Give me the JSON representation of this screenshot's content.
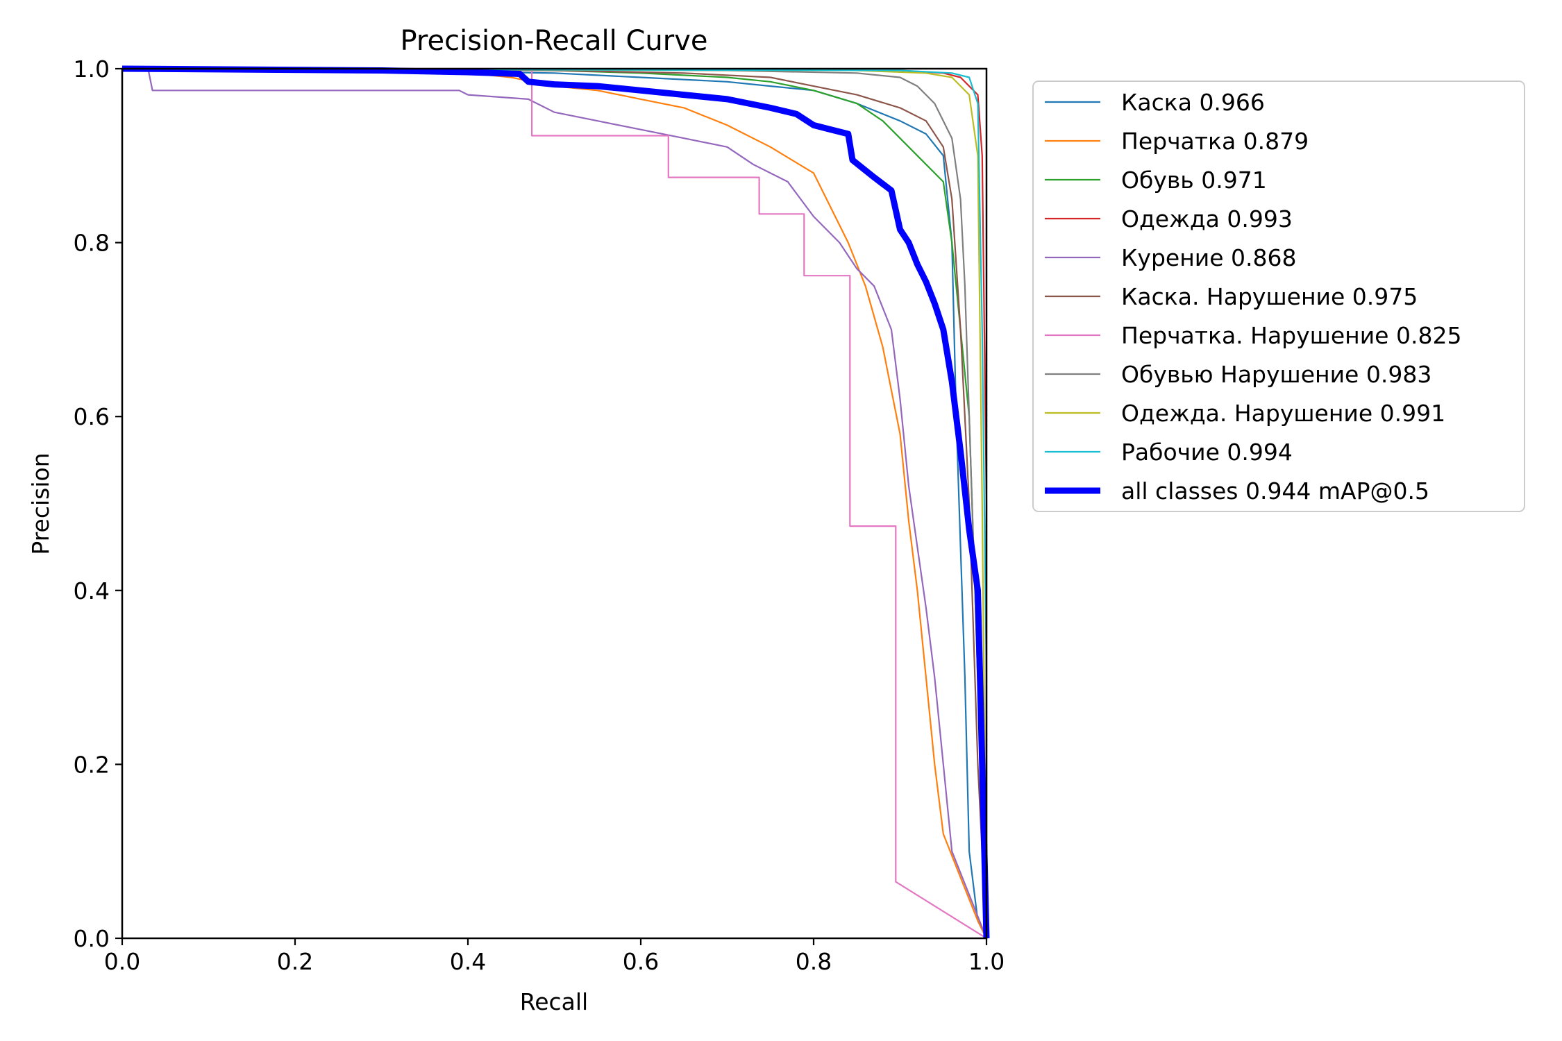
{
  "chart_data": {
    "type": "line",
    "title": "Precision-Recall Curve",
    "xlabel": "Recall",
    "ylabel": "Precision",
    "xlim": [
      0,
      1
    ],
    "ylim": [
      0,
      1
    ],
    "x_ticks": [
      "0.0",
      "0.2",
      "0.4",
      "0.6",
      "0.8",
      "1.0"
    ],
    "y_ticks": [
      "0.0",
      "0.2",
      "0.4",
      "0.6",
      "0.8",
      "1.0"
    ],
    "grid": false,
    "legend_position": "outside-right-top",
    "series": [
      {
        "name": "Каска 0.966",
        "color": "#1f77b4",
        "points": [
          [
            0,
            1.0
          ],
          [
            0.3,
            0.998
          ],
          [
            0.5,
            0.995
          ],
          [
            0.6,
            0.99
          ],
          [
            0.7,
            0.985
          ],
          [
            0.75,
            0.98
          ],
          [
            0.8,
            0.975
          ],
          [
            0.85,
            0.96
          ],
          [
            0.9,
            0.94
          ],
          [
            0.93,
            0.925
          ],
          [
            0.95,
            0.9
          ],
          [
            0.96,
            0.8
          ],
          [
            0.965,
            0.6
          ],
          [
            0.97,
            0.45
          ],
          [
            0.975,
            0.3
          ],
          [
            0.98,
            0.1
          ],
          [
            0.99,
            0.02
          ],
          [
            1.0,
            0.0
          ]
        ]
      },
      {
        "name": "Перчатка 0.879",
        "color": "#ff7f0e",
        "points": [
          [
            0,
            1.0
          ],
          [
            0.3,
            0.998
          ],
          [
            0.4,
            0.995
          ],
          [
            0.45,
            0.99
          ],
          [
            0.5,
            0.98
          ],
          [
            0.55,
            0.975
          ],
          [
            0.6,
            0.965
          ],
          [
            0.65,
            0.955
          ],
          [
            0.7,
            0.935
          ],
          [
            0.75,
            0.91
          ],
          [
            0.8,
            0.88
          ],
          [
            0.82,
            0.84
          ],
          [
            0.84,
            0.8
          ],
          [
            0.86,
            0.75
          ],
          [
            0.88,
            0.68
          ],
          [
            0.9,
            0.58
          ],
          [
            0.91,
            0.48
          ],
          [
            0.92,
            0.4
          ],
          [
            0.93,
            0.3
          ],
          [
            0.94,
            0.2
          ],
          [
            0.95,
            0.12
          ],
          [
            0.97,
            0.07
          ],
          [
            0.99,
            0.02
          ],
          [
            1.0,
            0.0
          ]
        ]
      },
      {
        "name": "Обувь 0.971",
        "color": "#2ca02c",
        "points": [
          [
            0,
            1.0
          ],
          [
            0.5,
            0.998
          ],
          [
            0.6,
            0.995
          ],
          [
            0.7,
            0.99
          ],
          [
            0.75,
            0.985
          ],
          [
            0.8,
            0.975
          ],
          [
            0.85,
            0.96
          ],
          [
            0.88,
            0.94
          ],
          [
            0.9,
            0.92
          ],
          [
            0.92,
            0.9
          ],
          [
            0.95,
            0.87
          ],
          [
            0.96,
            0.8
          ],
          [
            0.97,
            0.7
          ],
          [
            0.98,
            0.6
          ],
          [
            0.99,
            0.3
          ],
          [
            1.0,
            0.0
          ]
        ]
      },
      {
        "name": "Одежда 0.993",
        "color": "#d62728",
        "points": [
          [
            0,
            1.0
          ],
          [
            0.9,
            0.998
          ],
          [
            0.95,
            0.995
          ],
          [
            0.97,
            0.99
          ],
          [
            0.98,
            0.98
          ],
          [
            0.99,
            0.97
          ],
          [
            0.995,
            0.9
          ],
          [
            1.0,
            0.5
          ],
          [
            1.0,
            0.0
          ]
        ]
      },
      {
        "name": "Курение 0.868",
        "color": "#9467bd",
        "points": [
          [
            0,
            1.0
          ],
          [
            0.03,
            1.0
          ],
          [
            0.035,
            0.975
          ],
          [
            0.39,
            0.975
          ],
          [
            0.4,
            0.97
          ],
          [
            0.47,
            0.965
          ],
          [
            0.5,
            0.95
          ],
          [
            0.55,
            0.94
          ],
          [
            0.6,
            0.93
          ],
          [
            0.65,
            0.92
          ],
          [
            0.7,
            0.91
          ],
          [
            0.73,
            0.89
          ],
          [
            0.77,
            0.87
          ],
          [
            0.8,
            0.83
          ],
          [
            0.83,
            0.8
          ],
          [
            0.85,
            0.77
          ],
          [
            0.87,
            0.75
          ],
          [
            0.89,
            0.7
          ],
          [
            0.9,
            0.62
          ],
          [
            0.91,
            0.52
          ],
          [
            0.92,
            0.45
          ],
          [
            0.93,
            0.38
          ],
          [
            0.94,
            0.3
          ],
          [
            0.95,
            0.2
          ],
          [
            0.96,
            0.1
          ],
          [
            0.98,
            0.05
          ],
          [
            1.0,
            0.0
          ]
        ]
      },
      {
        "name": "Каска. Нарушение 0.975",
        "color": "#8c564b",
        "points": [
          [
            0,
            1.0
          ],
          [
            0.5,
            0.998
          ],
          [
            0.65,
            0.995
          ],
          [
            0.75,
            0.99
          ],
          [
            0.8,
            0.98
          ],
          [
            0.85,
            0.97
          ],
          [
            0.9,
            0.955
          ],
          [
            0.93,
            0.94
          ],
          [
            0.95,
            0.91
          ],
          [
            0.96,
            0.85
          ],
          [
            0.97,
            0.7
          ],
          [
            0.98,
            0.5
          ],
          [
            0.99,
            0.2
          ],
          [
            1.0,
            0.0
          ]
        ]
      },
      {
        "name": "Перчатка. Нарушение 0.825",
        "color": "#e377c2",
        "points": [
          [
            0,
            1.0
          ],
          [
            0.474,
            1.0
          ],
          [
            0.474,
            0.923
          ],
          [
            0.632,
            0.923
          ],
          [
            0.632,
            0.875
          ],
          [
            0.737,
            0.875
          ],
          [
            0.737,
            0.833
          ],
          [
            0.789,
            0.833
          ],
          [
            0.789,
            0.762
          ],
          [
            0.842,
            0.762
          ],
          [
            0.842,
            0.474
          ],
          [
            0.895,
            0.474
          ],
          [
            0.895,
            0.065
          ],
          [
            1.0,
            0.0
          ]
        ]
      },
      {
        "name": "Обувью Нарушение 0.983",
        "color": "#7f7f7f",
        "points": [
          [
            0,
            1.0
          ],
          [
            0.7,
            0.998
          ],
          [
            0.85,
            0.995
          ],
          [
            0.9,
            0.99
          ],
          [
            0.92,
            0.98
          ],
          [
            0.94,
            0.96
          ],
          [
            0.96,
            0.92
          ],
          [
            0.97,
            0.85
          ],
          [
            0.975,
            0.75
          ],
          [
            0.98,
            0.6
          ],
          [
            0.99,
            0.3
          ],
          [
            1.0,
            0.0
          ]
        ]
      },
      {
        "name": "Одежда. Нарушение 0.991",
        "color": "#bcbd22",
        "points": [
          [
            0,
            1.0
          ],
          [
            0.85,
            0.998
          ],
          [
            0.93,
            0.995
          ],
          [
            0.96,
            0.99
          ],
          [
            0.98,
            0.97
          ],
          [
            0.99,
            0.9
          ],
          [
            0.995,
            0.5
          ],
          [
            1.0,
            0.0
          ]
        ]
      },
      {
        "name": "Рабочие 0.994",
        "color": "#17becf",
        "points": [
          [
            0,
            1.0
          ],
          [
            0.9,
            0.998
          ],
          [
            0.96,
            0.995
          ],
          [
            0.98,
            0.99
          ],
          [
            0.99,
            0.96
          ],
          [
            0.995,
            0.7
          ],
          [
            1.0,
            0.3
          ],
          [
            1.0,
            0.0
          ]
        ]
      },
      {
        "name": "all classes 0.944 mAP@0.5",
        "color": "#0000ff",
        "bold": true,
        "points": [
          [
            0,
            1.0
          ],
          [
            0.3,
            0.998
          ],
          [
            0.4,
            0.996
          ],
          [
            0.46,
            0.994
          ],
          [
            0.47,
            0.985
          ],
          [
            0.5,
            0.982
          ],
          [
            0.55,
            0.98
          ],
          [
            0.6,
            0.975
          ],
          [
            0.65,
            0.97
          ],
          [
            0.7,
            0.965
          ],
          [
            0.75,
            0.955
          ],
          [
            0.78,
            0.948
          ],
          [
            0.8,
            0.935
          ],
          [
            0.82,
            0.93
          ],
          [
            0.84,
            0.925
          ],
          [
            0.845,
            0.895
          ],
          [
            0.87,
            0.875
          ],
          [
            0.89,
            0.86
          ],
          [
            0.9,
            0.815
          ],
          [
            0.91,
            0.8
          ],
          [
            0.92,
            0.775
          ],
          [
            0.93,
            0.755
          ],
          [
            0.94,
            0.73
          ],
          [
            0.95,
            0.7
          ],
          [
            0.96,
            0.64
          ],
          [
            0.97,
            0.56
          ],
          [
            0.98,
            0.47
          ],
          [
            0.99,
            0.4
          ],
          [
            0.995,
            0.2
          ],
          [
            1.0,
            0.0
          ]
        ]
      }
    ]
  }
}
